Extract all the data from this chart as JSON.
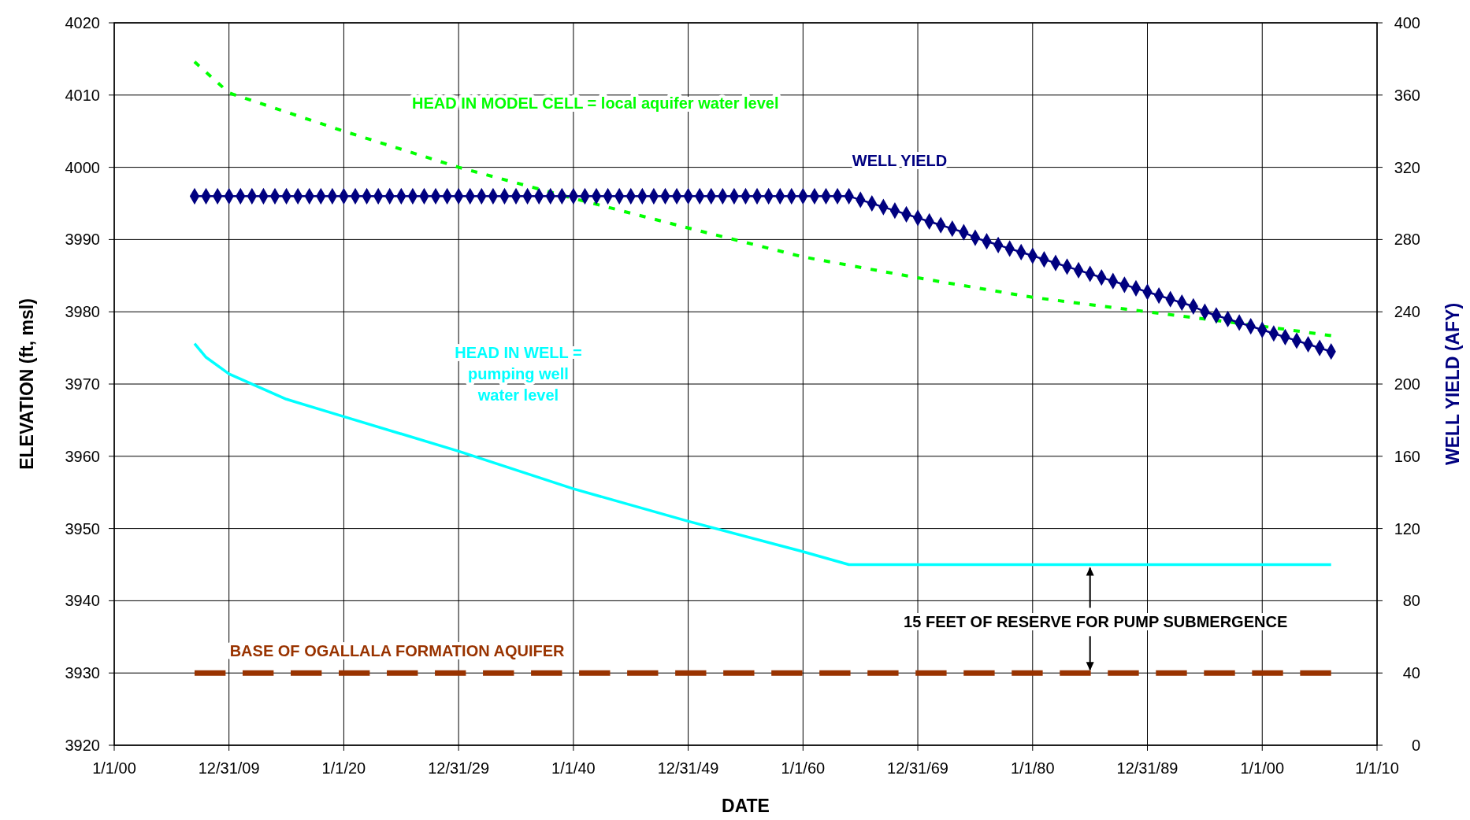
{
  "chart_data": {
    "type": "line",
    "xlabel": "DATE",
    "ylabel": "ELEVATION (ft, msl)",
    "y2label": "WELL YIELD (AFY)",
    "xlim": [
      "1900-01-01",
      "2010-01-01"
    ],
    "xticks": [
      {
        "value": "1900-01-01",
        "label": "1/1/00"
      },
      {
        "value": "1909-12-31",
        "label": "12/31/09"
      },
      {
        "value": "1920-01-01",
        "label": "1/1/20"
      },
      {
        "value": "1929-12-31",
        "label": "12/31/29"
      },
      {
        "value": "1940-01-01",
        "label": "1/1/40"
      },
      {
        "value": "1949-12-31",
        "label": "12/31/49"
      },
      {
        "value": "1960-01-01",
        "label": "1/1/60"
      },
      {
        "value": "1969-12-31",
        "label": "12/31/69"
      },
      {
        "value": "1980-01-01",
        "label": "1/1/80"
      },
      {
        "value": "1989-12-31",
        "label": "12/31/89"
      },
      {
        "value": "2000-01-01",
        "label": "1/1/00"
      },
      {
        "value": "2010-01-01",
        "label": "1/1/10"
      }
    ],
    "ylim": [
      3920,
      4020
    ],
    "yticks": [
      3920,
      3930,
      3940,
      3950,
      3960,
      3970,
      3980,
      3990,
      4000,
      4010,
      4020
    ],
    "y2lim": [
      0,
      400
    ],
    "y2ticks": [
      0,
      40,
      80,
      120,
      160,
      200,
      240,
      280,
      320,
      360,
      400
    ],
    "grid": true,
    "series": [
      {
        "name": "HEAD IN MODEL CELL = local aquifer water level",
        "color": "#00ff00",
        "line_style": "dashed",
        "x": [
          "1907",
          "1910",
          "1920",
          "1930",
          "1940",
          "1950",
          "1960",
          "1970",
          "1980",
          "1990",
          "2000",
          "2006"
        ],
        "values": [
          4014.6,
          4010.3,
          4005,
          4000,
          3995.7,
          3991.6,
          3987.6,
          3984.7,
          3982,
          3980,
          3978,
          3976.7
        ]
      },
      {
        "name": "WELL YIELD",
        "color": "#000080",
        "axis": "y2",
        "marker": "diamond",
        "line_style": "solid",
        "x": [
          "1907",
          "1908",
          "1909",
          "1910",
          "1911",
          "1912",
          "1913",
          "1914",
          "1915",
          "1916",
          "1917",
          "1918",
          "1919",
          "1920",
          "1921",
          "1922",
          "1923",
          "1924",
          "1925",
          "1926",
          "1927",
          "1928",
          "1929",
          "1930",
          "1931",
          "1932",
          "1933",
          "1934",
          "1935",
          "1936",
          "1937",
          "1938",
          "1939",
          "1940",
          "1941",
          "1942",
          "1943",
          "1944",
          "1945",
          "1946",
          "1947",
          "1948",
          "1949",
          "1950",
          "1951",
          "1952",
          "1953",
          "1954",
          "1955",
          "1956",
          "1957",
          "1958",
          "1959",
          "1960",
          "1961",
          "1962",
          "1963",
          "1964",
          "1965",
          "1966",
          "1967",
          "1968",
          "1969",
          "1970",
          "1971",
          "1972",
          "1973",
          "1974",
          "1975",
          "1976",
          "1977",
          "1978",
          "1979",
          "1980",
          "1981",
          "1982",
          "1983",
          "1984",
          "1985",
          "1986",
          "1987",
          "1988",
          "1989",
          "1990",
          "1991",
          "1992",
          "1993",
          "1994",
          "1995",
          "1996",
          "1997",
          "1998",
          "1999",
          "2000",
          "2001",
          "2002",
          "2003",
          "2004",
          "2005",
          "2006"
        ],
        "values": [
          304,
          304,
          304,
          304,
          304,
          304,
          304,
          304,
          304,
          304,
          304,
          304,
          304,
          304,
          304,
          304,
          304,
          304,
          304,
          304,
          304,
          304,
          304,
          304,
          304,
          304,
          304,
          304,
          304,
          304,
          304,
          304,
          304,
          304,
          304,
          304,
          304,
          304,
          304,
          304,
          304,
          304,
          304,
          304,
          304,
          304,
          304,
          304,
          304,
          304,
          304,
          304,
          304,
          304,
          304,
          304,
          304,
          304,
          302,
          300,
          298,
          296,
          294,
          292,
          290,
          288,
          286,
          284,
          281,
          279,
          277,
          275,
          273,
          271,
          269,
          267,
          265,
          263,
          261,
          259,
          257,
          255,
          253,
          251,
          249,
          247,
          245,
          243,
          240,
          238,
          236,
          234,
          232,
          230,
          228,
          226,
          224,
          222,
          220,
          218
        ]
      },
      {
        "name": "HEAD IN WELL = pumping well water level",
        "color": "#00ffff",
        "line_style": "solid",
        "x": [
          "1907",
          "1908",
          "1910",
          "1915",
          "1920",
          "1930",
          "1940",
          "1950",
          "1960",
          "1964",
          "2006"
        ],
        "values": [
          3975.6,
          3973.7,
          3971.4,
          3967.9,
          3965.5,
          3960.7,
          3955.5,
          3951,
          3946.8,
          3945,
          3945
        ]
      },
      {
        "name": "BASE OF OGALLALA FORMATION AQUIFER",
        "color": "#993300",
        "line_style": "dashed",
        "x": [
          "1907",
          "2006"
        ],
        "values": [
          3930,
          3930
        ]
      }
    ],
    "annotations": [
      {
        "text": "15 FEET OF RESERVE FOR PUMP SUBMERGENCE",
        "x": "1985-01-01",
        "y": 3945
      }
    ]
  }
}
